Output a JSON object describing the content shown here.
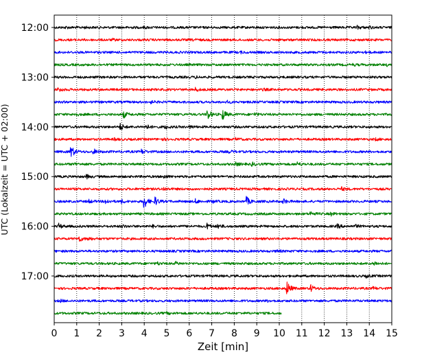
{
  "chart_data": {
    "type": "line",
    "title": "",
    "xlabel": "Zeit  [min]",
    "ylabel": "UTC (Lokalzeit = UTC + 02:00)",
    "xlim": [
      0,
      15
    ],
    "x_ticks": [
      "0",
      "1",
      "2",
      "3",
      "4",
      "5",
      "6",
      "7",
      "8",
      "9",
      "10",
      "11",
      "12",
      "13",
      "14",
      "15"
    ],
    "y_tick_labels": [
      "12:00",
      "13:00",
      "14:00",
      "15:00",
      "16:00",
      "17:00"
    ],
    "grid": "vertical dotted lines at each minute",
    "trace_interval_minutes": 15,
    "trace_colors": [
      "#000000",
      "#ff0000",
      "#0000ff",
      "#008000"
    ],
    "series": [
      {
        "start_utc": "12:00",
        "color": "#000000",
        "end_min": 15,
        "events": [
          [
            0.5,
            0.25
          ],
          [
            1.3,
            0.2
          ],
          [
            3.3,
            0.25
          ],
          [
            4.0,
            0.25
          ],
          [
            13.5,
            0.4
          ],
          [
            14.0,
            0.3
          ]
        ]
      },
      {
        "start_utc": "12:15",
        "color": "#ff0000",
        "end_min": 15,
        "events": [
          [
            2.6,
            0.2
          ],
          [
            6.2,
            0.2
          ],
          [
            9.9,
            0.2
          ]
        ]
      },
      {
        "start_utc": "12:30",
        "color": "#0000ff",
        "end_min": 15,
        "events": [
          [
            8.3,
            0.2
          ],
          [
            13.8,
            0.2
          ]
        ]
      },
      {
        "start_utc": "12:45",
        "color": "#008000",
        "end_min": 15,
        "events": [
          [
            13.3,
            0.2
          ],
          [
            14.8,
            0.25
          ]
        ]
      },
      {
        "start_utc": "13:00",
        "color": "#000000",
        "end_min": 15,
        "events": [
          [
            6.3,
            0.2
          ]
        ]
      },
      {
        "start_utc": "13:15",
        "color": "#ff0000",
        "end_min": 15,
        "events": [
          [
            0.2,
            0.6
          ],
          [
            6.3,
            0.5
          ],
          [
            9.3,
            0.25
          ]
        ]
      },
      {
        "start_utc": "13:30",
        "color": "#0000ff",
        "end_min": 15,
        "events": [
          [
            4.3,
            0.3
          ],
          [
            7.7,
            0.25
          ]
        ]
      },
      {
        "start_utc": "13:45",
        "color": "#008000",
        "end_min": 15,
        "events": [
          [
            0.9,
            0.5
          ],
          [
            3.1,
            0.9
          ],
          [
            6.8,
            1.9
          ],
          [
            7.5,
            1.5
          ],
          [
            8.9,
            0.4
          ]
        ]
      },
      {
        "start_utc": "14:00",
        "color": "#000000",
        "end_min": 15,
        "events": [
          [
            2.95,
            1.0
          ],
          [
            4.05,
            0.9
          ],
          [
            4.95,
            0.55
          ],
          [
            6.05,
            0.3
          ]
        ]
      },
      {
        "start_utc": "14:15",
        "color": "#ff0000",
        "end_min": 15,
        "events": [
          [
            2.7,
            0.25
          ],
          [
            4.8,
            0.25
          ],
          [
            8.1,
            0.3
          ],
          [
            14.3,
            0.25
          ]
        ]
      },
      {
        "start_utc": "14:30",
        "color": "#0000ff",
        "end_min": 15,
        "events": [
          [
            0.75,
            2.0
          ],
          [
            1.75,
            0.8
          ],
          [
            3.9,
            0.6
          ],
          [
            7.8,
            0.25
          ]
        ]
      },
      {
        "start_utc": "14:45",
        "color": "#008000",
        "end_min": 15,
        "events": [
          [
            0.9,
            0.3
          ],
          [
            8.1,
            0.4
          ],
          [
            8.8,
            0.45
          ],
          [
            10.8,
            0.6
          ]
        ]
      },
      {
        "start_utc": "15:00",
        "color": "#000000",
        "end_min": 15,
        "events": [
          [
            1.45,
            0.5
          ],
          [
            4.9,
            0.4
          ]
        ]
      },
      {
        "start_utc": "15:15",
        "color": "#ff0000",
        "end_min": 15,
        "events": [
          [
            4.85,
            0.4
          ],
          [
            12.8,
            0.4
          ]
        ]
      },
      {
        "start_utc": "15:30",
        "color": "#0000ff",
        "end_min": 15,
        "events": [
          [
            1.5,
            0.6
          ],
          [
            2.3,
            0.65
          ],
          [
            3.0,
            0.45
          ],
          [
            4.0,
            2.1
          ],
          [
            4.5,
            1.1
          ],
          [
            6.3,
            0.55
          ],
          [
            7.0,
            0.45
          ],
          [
            8.55,
            1.3
          ],
          [
            10.2,
            0.7
          ]
        ]
      },
      {
        "start_utc": "15:45",
        "color": "#008000",
        "end_min": 15,
        "events": [
          [
            11.4,
            0.55
          ],
          [
            12.3,
            0.4
          ]
        ]
      },
      {
        "start_utc": "16:00",
        "color": "#000000",
        "end_min": 15,
        "events": [
          [
            0.2,
            0.75
          ],
          [
            3.0,
            0.4
          ],
          [
            4.4,
            0.3
          ],
          [
            6.8,
            0.8
          ],
          [
            7.3,
            0.6
          ],
          [
            12.6,
            0.55
          ],
          [
            13.4,
            0.35
          ]
        ]
      },
      {
        "start_utc": "16:15",
        "color": "#ff0000",
        "end_min": 15,
        "events": [
          [
            1.1,
            0.9
          ],
          [
            1.5,
            0.5
          ]
        ]
      },
      {
        "start_utc": "16:30",
        "color": "#0000ff",
        "end_min": 15,
        "events": [
          [
            9.9,
            0.3
          ]
        ]
      },
      {
        "start_utc": "16:45",
        "color": "#008000",
        "end_min": 15,
        "events": [
          [
            4.6,
            0.35
          ],
          [
            5.4,
            0.4
          ],
          [
            14.2,
            0.65
          ]
        ]
      },
      {
        "start_utc": "17:00",
        "color": "#000000",
        "end_min": 15,
        "events": [
          [
            13.9,
            0.35
          ]
        ]
      },
      {
        "start_utc": "17:15",
        "color": "#ff0000",
        "end_min": 15,
        "events": [
          [
            10.35,
            2.1
          ],
          [
            11.4,
            1.0
          ],
          [
            14.2,
            0.35
          ]
        ]
      },
      {
        "start_utc": "17:30",
        "color": "#0000ff",
        "end_min": 15,
        "events": [
          [
            0.3,
            0.25
          ],
          [
            9.5,
            0.2
          ]
        ]
      },
      {
        "start_utc": "17:45",
        "color": "#008000",
        "end_min": 10.1,
        "events": [
          [
            5.0,
            0.25
          ]
        ]
      }
    ]
  }
}
